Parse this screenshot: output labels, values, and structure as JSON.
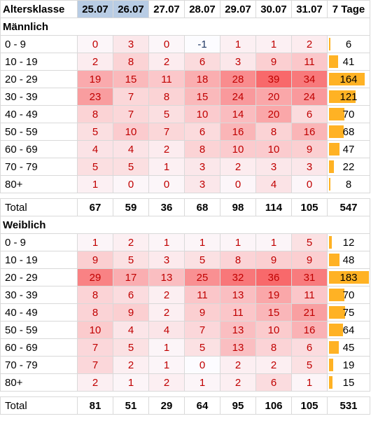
{
  "header": {
    "age_label": "Altersklasse",
    "dates": [
      "25.07",
      "26.07",
      "27.07",
      "28.07",
      "29.07",
      "30.07",
      "31.07"
    ],
    "dates_highlighted": [
      true,
      true,
      false,
      false,
      false,
      false,
      false
    ],
    "total_col": "7 Tage"
  },
  "colors": {
    "heat_max": "#f8696b",
    "heat_min": "#fcfcff",
    "bar": "#ffb224",
    "date_highlight": "#b8cce4"
  },
  "bar_max": 183,
  "sections": [
    {
      "title": "Männlich",
      "rows": [
        {
          "label": "0 - 9",
          "values": [
            0,
            3,
            0,
            -1,
            1,
            1,
            2
          ],
          "total": 6
        },
        {
          "label": "10 - 19",
          "values": [
            2,
            8,
            2,
            6,
            3,
            9,
            11
          ],
          "total": 41
        },
        {
          "label": "20 - 29",
          "values": [
            19,
            15,
            11,
            18,
            28,
            39,
            34
          ],
          "total": 164
        },
        {
          "label": "30 - 39",
          "values": [
            23,
            7,
            8,
            15,
            24,
            20,
            24
          ],
          "total": 121
        },
        {
          "label": "40 - 49",
          "values": [
            8,
            7,
            5,
            10,
            14,
            20,
            6
          ],
          "total": 70
        },
        {
          "label": "50 - 59",
          "values": [
            5,
            10,
            7,
            6,
            16,
            8,
            16
          ],
          "total": 68
        },
        {
          "label": "60 - 69",
          "values": [
            4,
            4,
            2,
            8,
            10,
            10,
            9
          ],
          "total": 47
        },
        {
          "label": "70 - 79",
          "values": [
            5,
            5,
            1,
            3,
            2,
            3,
            3
          ],
          "total": 22
        },
        {
          "label": "80+",
          "values": [
            1,
            0,
            0,
            3,
            0,
            4,
            0
          ],
          "total": 8
        }
      ],
      "total_label": "Total",
      "totals": [
        67,
        59,
        36,
        68,
        98,
        114,
        105
      ],
      "grand_total": 547
    },
    {
      "title": "Weiblich",
      "rows": [
        {
          "label": "0 - 9",
          "values": [
            1,
            2,
            1,
            1,
            1,
            1,
            5
          ],
          "total": 12
        },
        {
          "label": "10 - 19",
          "values": [
            9,
            5,
            3,
            5,
            8,
            9,
            9
          ],
          "total": 48
        },
        {
          "label": "20 - 29",
          "values": [
            29,
            17,
            13,
            25,
            32,
            36,
            31
          ],
          "total": 183
        },
        {
          "label": "30 - 39",
          "values": [
            8,
            6,
            2,
            11,
            13,
            19,
            11
          ],
          "total": 70
        },
        {
          "label": "40 - 49",
          "values": [
            8,
            9,
            2,
            9,
            11,
            15,
            21
          ],
          "total": 75
        },
        {
          "label": "50 - 59",
          "values": [
            10,
            4,
            4,
            7,
            13,
            10,
            16
          ],
          "total": 64
        },
        {
          "label": "60 - 69",
          "values": [
            7,
            5,
            1,
            5,
            13,
            8,
            6
          ],
          "total": 45
        },
        {
          "label": "70 - 79",
          "values": [
            7,
            2,
            1,
            0,
            2,
            2,
            5
          ],
          "total": 19
        },
        {
          "label": "80+",
          "values": [
            2,
            1,
            2,
            1,
            2,
            6,
            1
          ],
          "total": 15
        }
      ],
      "total_label": "Total",
      "totals": [
        81,
        51,
        29,
        64,
        95,
        106,
        105
      ],
      "grand_total": 531
    }
  ]
}
